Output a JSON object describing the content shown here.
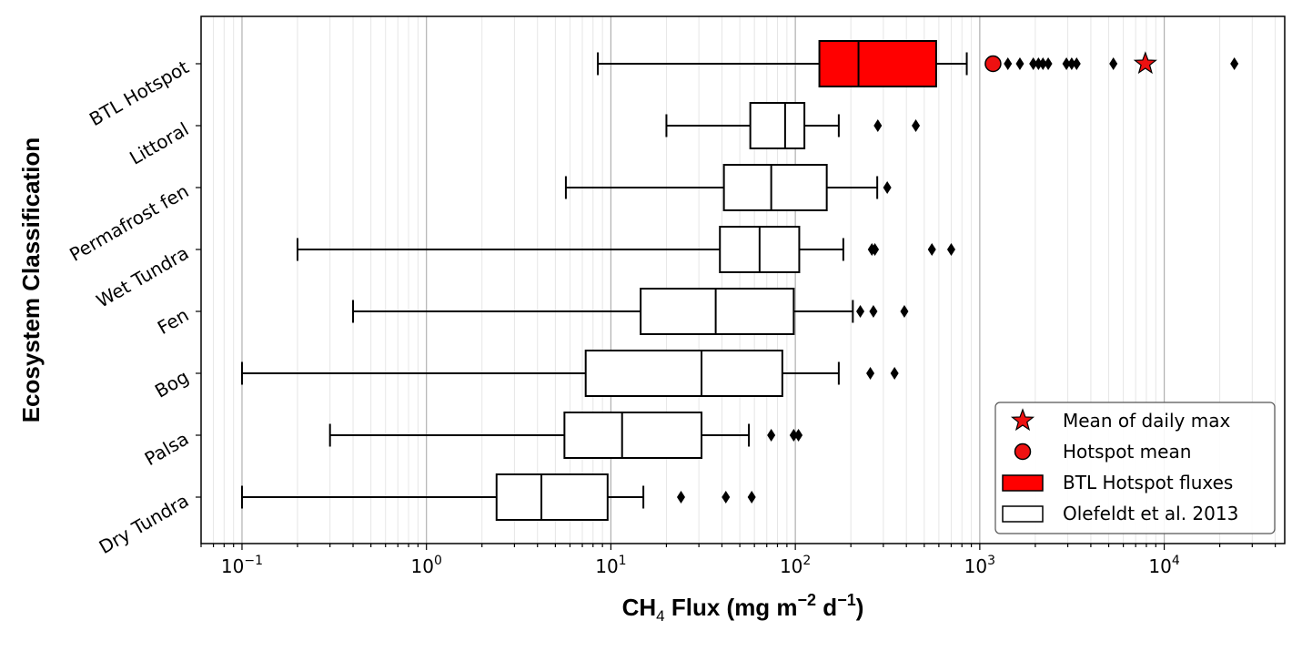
{
  "chart_data": {
    "type": "boxplot",
    "orientation": "horizontal",
    "xscale": "log",
    "xlim": [
      0.06,
      45000
    ],
    "xlabel": {
      "prefix": "CH",
      "sub": "4",
      "mid": " Flux (mg m",
      "sup1": "−2",
      "mid2": " d",
      "sup2": "−1",
      "suffix": ")"
    },
    "ylabel": "Ecosystem Classification",
    "xticks": [
      {
        "value": 0.1,
        "base": "10",
        "exp": "−1"
      },
      {
        "value": 1,
        "base": "10",
        "exp": "0"
      },
      {
        "value": 10,
        "base": "10",
        "exp": "1"
      },
      {
        "value": 100,
        "base": "10",
        "exp": "2"
      },
      {
        "value": 1000,
        "base": "10",
        "exp": "3"
      },
      {
        "value": 10000,
        "base": "10",
        "exp": "4"
      }
    ],
    "grid": true,
    "categories": [
      "BTL Hotspot",
      "Littoral",
      "Permafrost fen",
      "Wet Tundra",
      "Fen",
      "Bog",
      "Palsa",
      "Dry Tundra"
    ],
    "boxes": [
      {
        "category": "BTL Hotspot",
        "series": "BTL Hotspot fluxes",
        "whisker_low": 8.5,
        "q1": 135,
        "median": 220,
        "q3": 580,
        "whisker_high": 850,
        "outliers": [
          1420,
          1650,
          1950,
          2080,
          2200,
          2350,
          2950,
          3150,
          3350,
          5300,
          24000
        ]
      },
      {
        "category": "Littoral",
        "series": "Olefeldt et al. 2013",
        "whisker_low": 20,
        "q1": 57,
        "median": 88,
        "q3": 112,
        "whisker_high": 172,
        "outliers": [
          280,
          450
        ]
      },
      {
        "category": "Permafrost fen",
        "series": "Olefeldt et al. 2013",
        "whisker_low": 5.7,
        "q1": 41,
        "median": 74,
        "q3": 148,
        "whisker_high": 278,
        "outliers": [
          315
        ]
      },
      {
        "category": "Wet Tundra",
        "series": "Olefeldt et al. 2013",
        "whisker_low": 0.2,
        "q1": 39,
        "median": 64,
        "q3": 105,
        "whisker_high": 182,
        "outliers": [
          260,
          270,
          550,
          700
        ]
      },
      {
        "category": "Fen",
        "series": "Olefeldt et al. 2013",
        "whisker_low": 0.4,
        "q1": 14.5,
        "median": 37,
        "q3": 98,
        "whisker_high": 205,
        "outliers": [
          225,
          265,
          390
        ]
      },
      {
        "category": "Bog",
        "series": "Olefeldt et al. 2013",
        "whisker_low": 0.1,
        "q1": 7.3,
        "median": 31,
        "q3": 85,
        "whisker_high": 172,
        "outliers": [
          255,
          345
        ]
      },
      {
        "category": "Palsa",
        "series": "Olefeldt et al. 2013",
        "whisker_low": 0.3,
        "q1": 5.6,
        "median": 11.5,
        "q3": 31,
        "whisker_high": 56,
        "outliers": [
          74,
          98,
          104
        ]
      },
      {
        "category": "Dry Tundra",
        "series": "Olefeldt et al. 2013",
        "whisker_low": 0.1,
        "q1": 2.4,
        "median": 4.2,
        "q3": 9.6,
        "whisker_high": 15,
        "outliers": [
          24,
          42,
          58
        ]
      }
    ],
    "markers": [
      {
        "series": "Hotspot mean",
        "category": "BTL Hotspot",
        "x": 1180,
        "shape": "circle",
        "color": "#ee1111"
      },
      {
        "series": "Mean of daily max",
        "category": "BTL Hotspot",
        "x": 7900,
        "shape": "star",
        "color": "#ee1111"
      }
    ],
    "legend": {
      "position": "bottom-right",
      "entries": [
        {
          "label": "Mean of daily max",
          "symbol": "star",
          "color": "#ee1111"
        },
        {
          "label": "Hotspot mean",
          "symbol": "circle",
          "color": "#ee1111"
        },
        {
          "label": "BTL Hotspot fluxes",
          "symbol": "patch",
          "color": "#ff0000"
        },
        {
          "label": "Olefeldt et al. 2013",
          "symbol": "patch",
          "color": "#ffffff"
        }
      ]
    },
    "colors": {
      "hotspot_box": "#ff0000",
      "reference_box": "#ffffff",
      "grid_major": "#b0b0b0",
      "grid_minor": "#e6e6e6",
      "edge": "#000000"
    }
  }
}
